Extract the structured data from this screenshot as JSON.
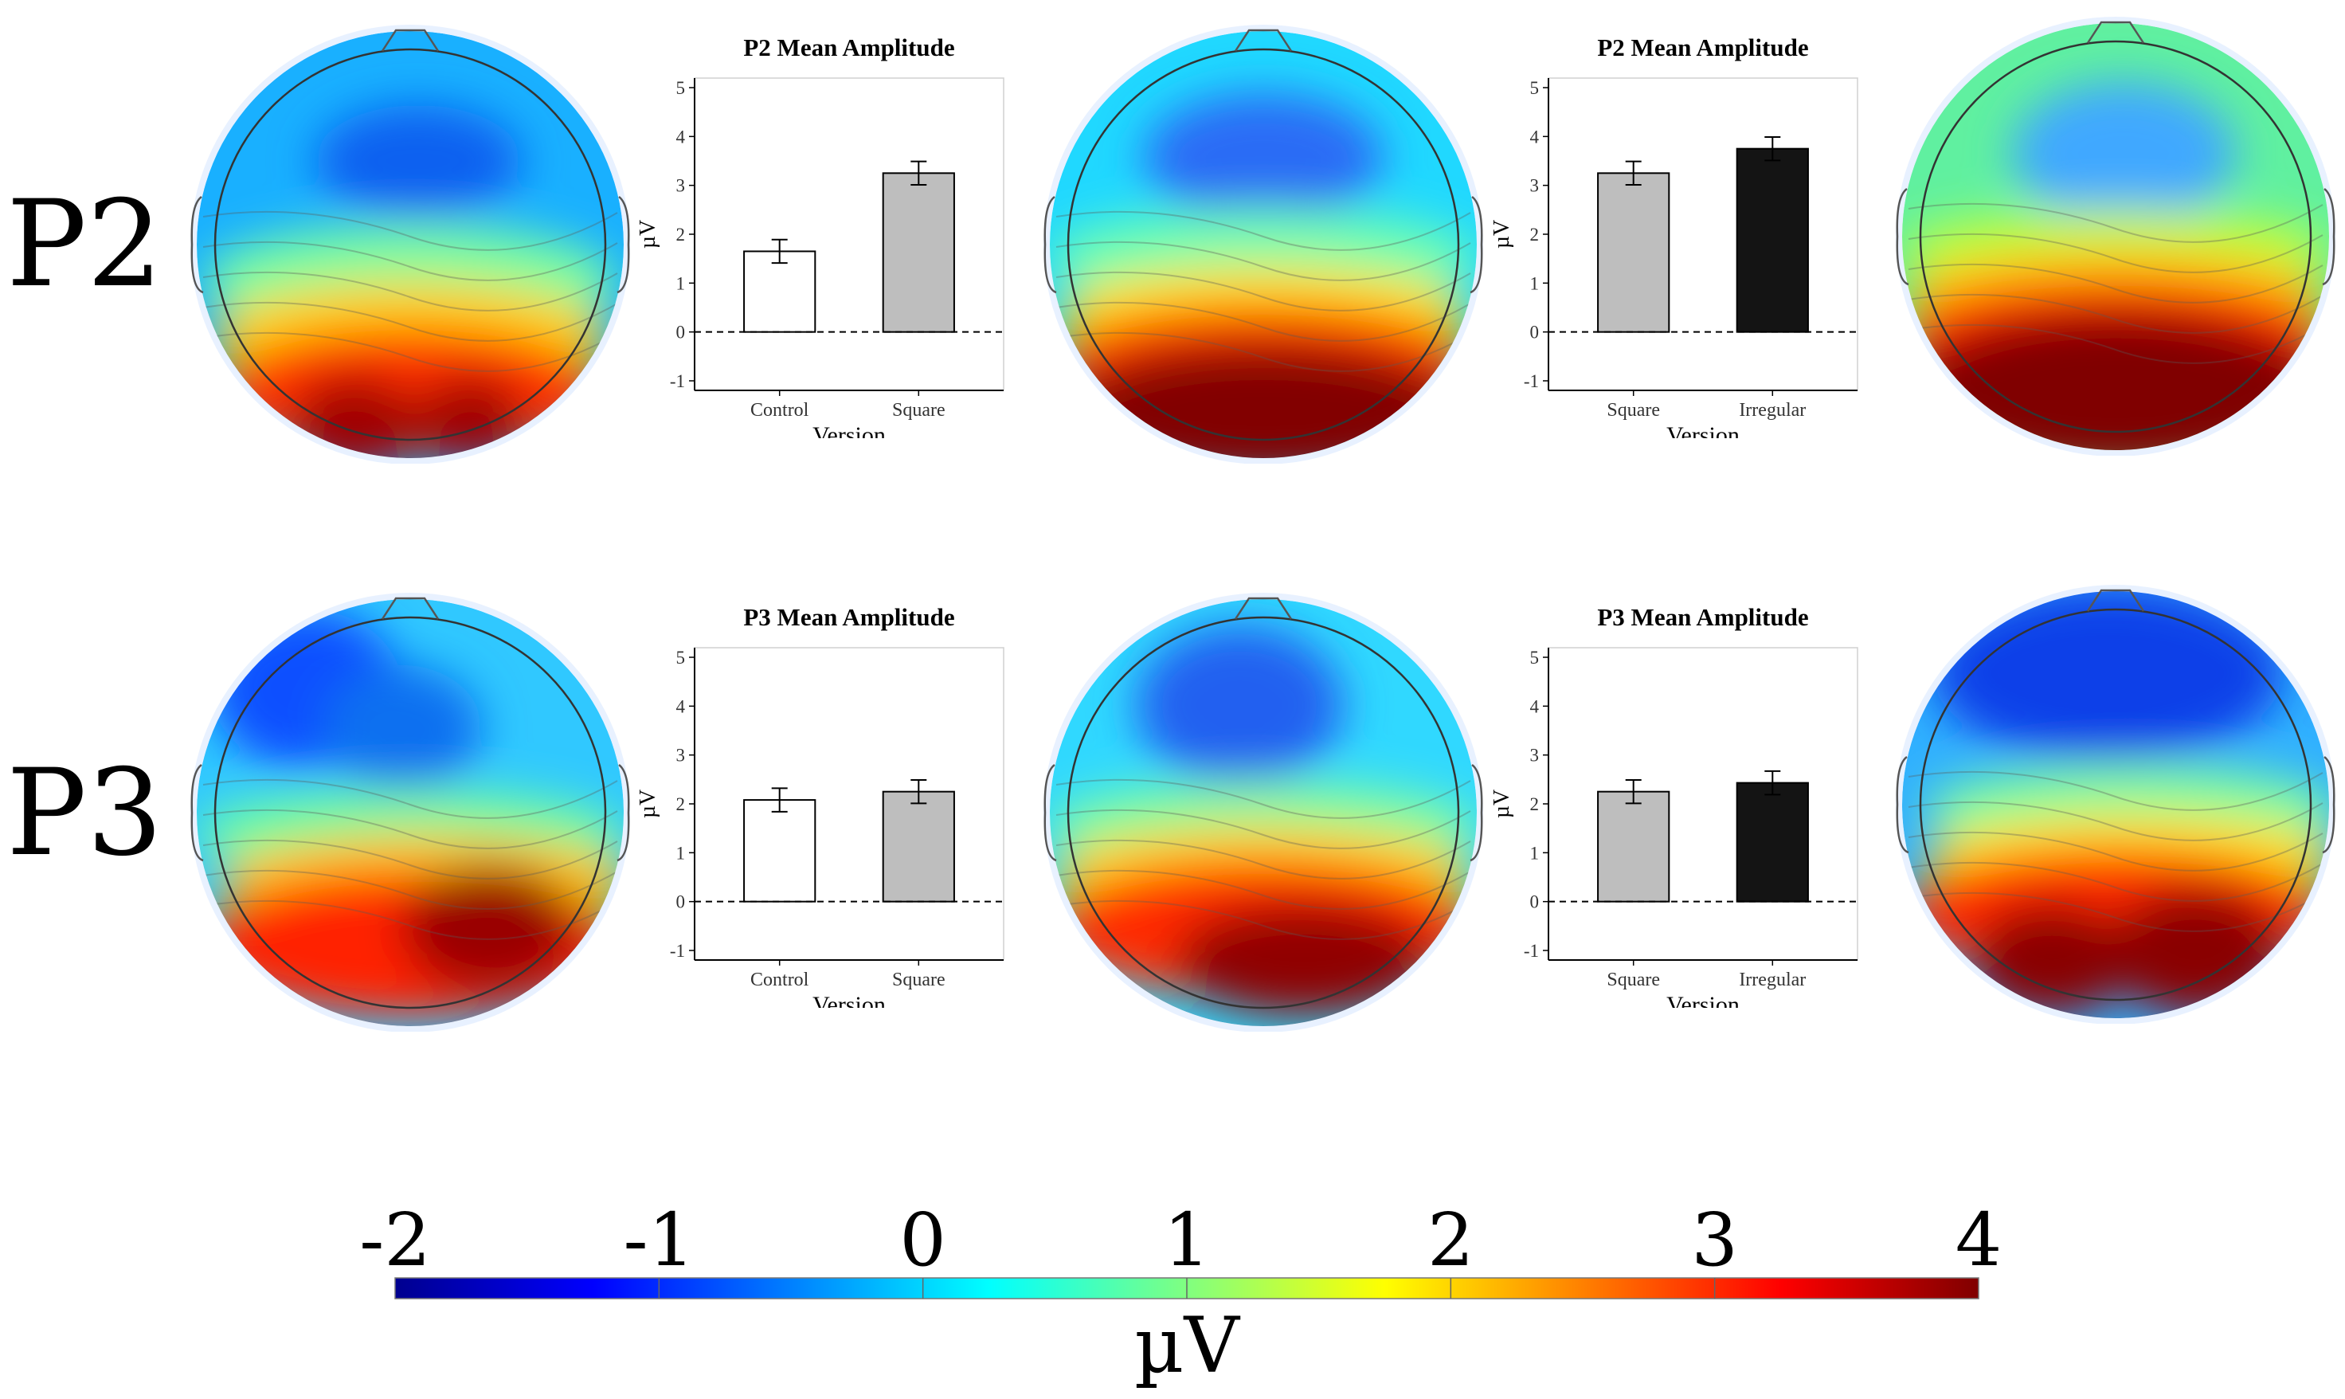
{
  "rows": [
    {
      "label": "P2"
    },
    {
      "label": "P3"
    }
  ],
  "chart_data": [
    {
      "type": "bar",
      "title": "P2 Mean Amplitude",
      "xlabel": "Version",
      "ylabel": "µV",
      "ylim": [
        -1,
        5
      ],
      "yticks": [
        -1,
        0,
        1,
        2,
        3,
        4,
        5
      ],
      "categories": [
        "Control",
        "Square"
      ],
      "values": [
        1.65,
        3.25
      ],
      "errors": [
        0.24,
        0.24
      ],
      "bar_colors": [
        "#ffffff",
        "#bebebe"
      ],
      "grid": false
    },
    {
      "type": "bar",
      "title": "P2 Mean Amplitude",
      "xlabel": "Version",
      "ylabel": "µV",
      "ylim": [
        -1,
        5
      ],
      "yticks": [
        -1,
        0,
        1,
        2,
        3,
        4,
        5
      ],
      "categories": [
        "Square",
        "Irregular"
      ],
      "values": [
        3.25,
        3.75
      ],
      "errors": [
        0.24,
        0.24
      ],
      "bar_colors": [
        "#bebebe",
        "#141414"
      ],
      "grid": false
    },
    {
      "type": "bar",
      "title": "P3 Mean Amplitude",
      "xlabel": "Version",
      "ylabel": "µV",
      "ylim": [
        -1,
        5
      ],
      "yticks": [
        -1,
        0,
        1,
        2,
        3,
        4,
        5
      ],
      "categories": [
        "Control",
        "Square"
      ],
      "values": [
        2.08,
        2.25
      ],
      "errors": [
        0.24,
        0.24
      ],
      "bar_colors": [
        "#ffffff",
        "#bebebe"
      ],
      "grid": false
    },
    {
      "type": "bar",
      "title": "P3 Mean Amplitude",
      "xlabel": "Version",
      "ylabel": "µV",
      "ylim": [
        -1,
        5
      ],
      "yticks": [
        -1,
        0,
        1,
        2,
        3,
        4,
        5
      ],
      "categories": [
        "Square",
        "Irregular"
      ],
      "values": [
        2.25,
        2.43
      ],
      "errors": [
        0.24,
        0.24
      ],
      "bar_colors": [
        "#bebebe",
        "#141414"
      ],
      "grid": false
    }
  ],
  "topomaps": [
    {
      "type": "heatmap",
      "row": "P2",
      "condition": "Control",
      "pattern": "neg-frontal-center, pos-occipital-double"
    },
    {
      "type": "heatmap",
      "row": "P2",
      "condition": "Square",
      "pattern": "neg-frontal-center, pos-occipital-band"
    },
    {
      "type": "heatmap",
      "row": "P2",
      "condition": "Irregular",
      "pattern": "neg-frontal-center, pos-occipital-band-strong"
    },
    {
      "type": "heatmap",
      "row": "P3",
      "condition": "Control",
      "pattern": "neg-left-frontal, pos-right-occipital"
    },
    {
      "type": "heatmap",
      "row": "P3",
      "condition": "Square",
      "pattern": "neg-central-frontal, pos-occipital"
    },
    {
      "type": "heatmap",
      "row": "P3",
      "condition": "Irregular",
      "pattern": "neg-frontal-wide, pos-occipital-double"
    }
  ],
  "colorbar": {
    "min": -2,
    "max": 4,
    "ticks": [
      "-2",
      "-1",
      "0",
      "1",
      "2",
      "3",
      "4"
    ],
    "label": "µV",
    "colormap": "jet",
    "colors": [
      "#00008f",
      "#0000ff",
      "#0080ff",
      "#00ffff",
      "#80ff80",
      "#ffff00",
      "#ff8000",
      "#ff0000",
      "#800000"
    ]
  }
}
